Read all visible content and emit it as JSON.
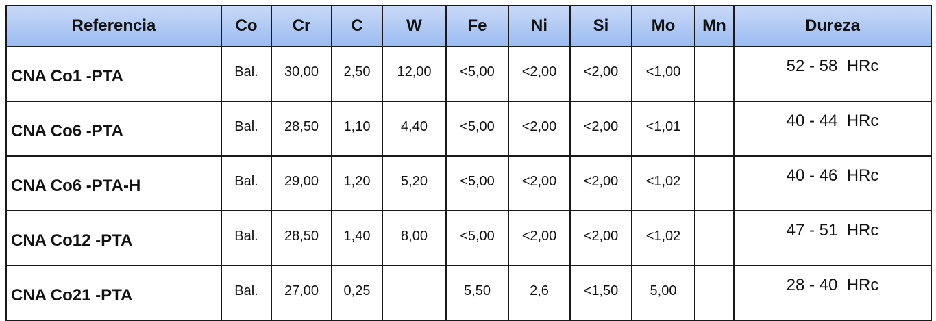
{
  "table": {
    "header": [
      "Referencia",
      "Co",
      "Cr",
      "C",
      "W",
      "Fe",
      "Ni",
      "Si",
      "Mo",
      "Mn",
      "Dureza"
    ],
    "rows": [
      [
        "CNA Co1 -PTA",
        "Bal.",
        "30,00",
        "2,50",
        "12,00",
        "<5,00",
        "<2,00",
        "<2,00",
        "<1,00",
        null,
        "52 - 58  HRc"
      ],
      [
        "CNA Co6 -PTA",
        "Bal.",
        "28,50",
        "1,10",
        "4,40",
        "<5,00",
        "<2,00",
        "<2,00",
        "<1,01",
        null,
        "40 - 44  HRc"
      ],
      [
        "CNA Co6 -PTA-H",
        "Bal.",
        "29,00",
        "1,20",
        "5,20",
        "<5,00",
        "<2,00",
        "<2,00",
        "<1,02",
        null,
        "40 - 46  HRc"
      ],
      [
        "CNA Co12 -PTA",
        "Bal.",
        "28,50",
        "1,40",
        "8,00",
        "<5,00",
        "<2,00",
        "<2,00",
        "<1,02",
        null,
        "47 - 51  HRc"
      ],
      [
        "CNA Co21 -PTA",
        "Bal.",
        "27,00",
        "0,25",
        null,
        "5,50",
        "2,6",
        "<1,50",
        "5,00",
        null,
        "28 - 40  HRc"
      ]
    ]
  }
}
